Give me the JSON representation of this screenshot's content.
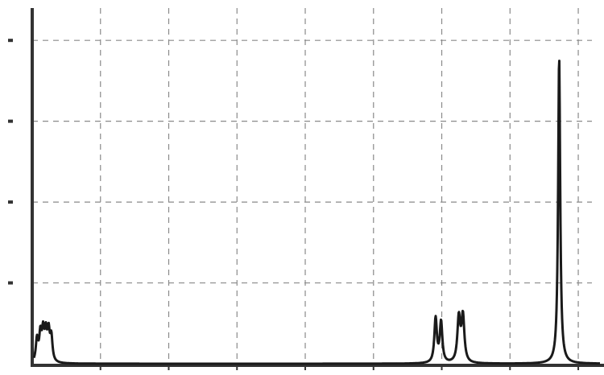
{
  "chart_data": {
    "type": "line",
    "title": "",
    "xlabel": "",
    "ylabel": "",
    "grid": true,
    "legend": "none",
    "xlim": [
      0,
      8.2
    ],
    "ylim": [
      0,
      4.4
    ],
    "x_gridlines": [
      1,
      2,
      3,
      4,
      5,
      6,
      7,
      8
    ],
    "y_gridlines": [
      1,
      2,
      3,
      4
    ],
    "colors": {
      "line": "#1a1a1a",
      "grid": "#8a8a8a",
      "axis": "#333333"
    },
    "series": [
      {
        "peaks": [
          {
            "x": 0.07,
            "height": 0.28,
            "width": 0.02,
            "group": "multiplet-1"
          },
          {
            "x": 0.12,
            "height": 0.33,
            "width": 0.02,
            "group": "multiplet-1"
          },
          {
            "x": 0.16,
            "height": 0.35,
            "width": 0.02,
            "group": "multiplet-1"
          },
          {
            "x": 0.2,
            "height": 0.33,
            "width": 0.02,
            "group": "multiplet-1"
          },
          {
            "x": 0.24,
            "height": 0.35,
            "width": 0.02,
            "group": "multiplet-1"
          },
          {
            "x": 0.28,
            "height": 0.3,
            "width": 0.02,
            "group": "multiplet-1"
          },
          {
            "x": 5.91,
            "height": 0.55,
            "width": 0.022
          },
          {
            "x": 5.99,
            "height": 0.5,
            "width": 0.022
          },
          {
            "x": 6.25,
            "height": 0.55,
            "width": 0.025
          },
          {
            "x": 6.31,
            "height": 0.57,
            "width": 0.025
          },
          {
            "x": 7.72,
            "height": 3.8,
            "width": 0.018
          }
        ]
      }
    ]
  }
}
